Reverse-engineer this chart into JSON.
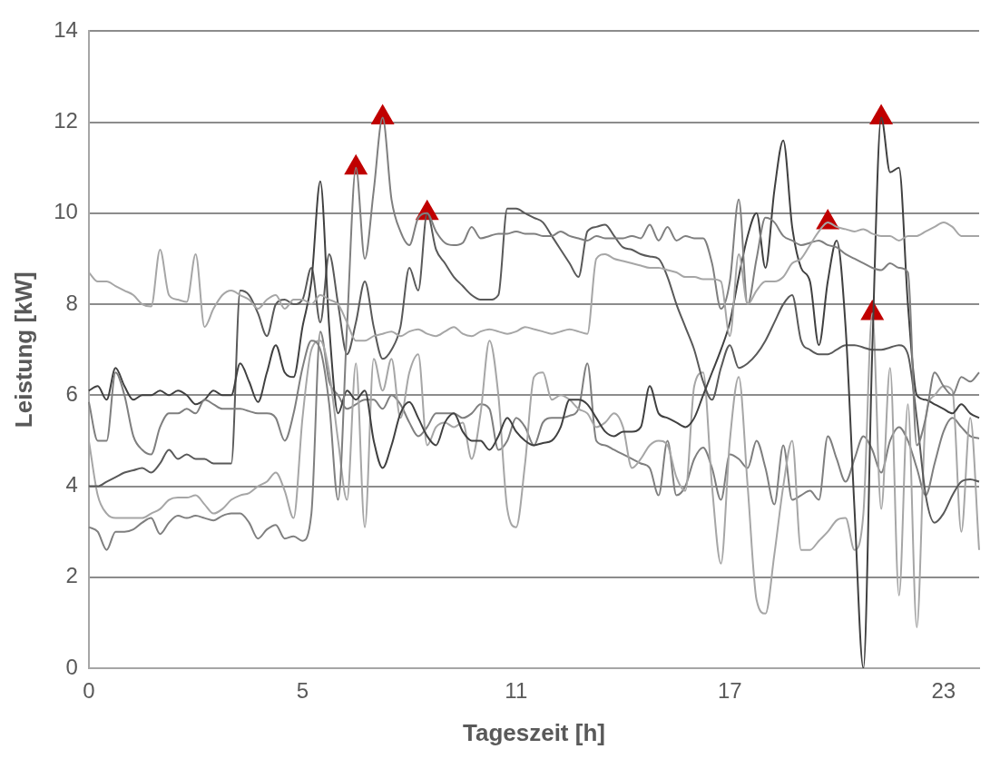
{
  "chart_data": {
    "type": "line",
    "xlabel": "Tageszeit [h]",
    "ylabel": "Leistung [kW]",
    "categories": [
      "0",
      null,
      null,
      null,
      null,
      null,
      null,
      null,
      null,
      null,
      null,
      null,
      null,
      null,
      null,
      null,
      null,
      null,
      null,
      null,
      null,
      null,
      null,
      null,
      "5",
      null,
      null,
      null,
      null,
      null,
      null,
      null,
      null,
      null,
      null,
      null,
      null,
      null,
      null,
      null,
      null,
      null,
      null,
      null,
      null,
      null,
      null,
      null,
      "11",
      null,
      null,
      null,
      null,
      null,
      null,
      null,
      null,
      null,
      null,
      null,
      null,
      null,
      null,
      null,
      null,
      null,
      null,
      null,
      null,
      null,
      null,
      null,
      "17",
      null,
      null,
      null,
      null,
      null,
      null,
      null,
      null,
      null,
      null,
      null,
      null,
      null,
      null,
      null,
      null,
      null,
      null,
      null,
      null,
      null,
      null,
      null,
      "23",
      null,
      null,
      null,
      null
    ],
    "ylim": [
      0,
      14
    ],
    "yticks": [
      0,
      2,
      4,
      6,
      8,
      10,
      12,
      14
    ],
    "grid": "y",
    "legend": false,
    "series": [
      {
        "color": "#a6a6a6",
        "values": [
          8.7,
          8.5,
          8.5,
          8.4,
          8.3,
          8.2,
          8.0,
          7.95,
          9.2,
          8.2,
          8.1,
          8.05,
          9.1,
          7.5,
          7.9,
          8.2,
          8.3,
          8.2,
          8.1,
          7.9,
          8.1,
          8.2,
          7.9,
          8.1,
          8.1,
          8.0,
          8.2,
          8.1,
          8.0,
          7.6,
          7.2,
          7.2,
          7.3,
          7.35,
          7.4,
          7.3,
          7.4,
          7.45,
          7.35,
          7.3,
          7.4,
          7.5,
          7.35,
          7.3,
          7.4,
          7.45,
          7.4,
          7.35,
          7.4,
          7.5,
          7.45,
          7.4,
          7.35,
          7.4,
          7.45,
          7.4,
          7.35,
          9.0,
          9.1,
          9.0,
          8.95,
          8.9,
          8.85,
          8.8,
          8.8,
          8.75,
          8.7,
          8.6,
          8.6,
          8.55,
          8.55,
          8.5,
          7.3,
          9.1,
          8.0,
          8.3,
          8.5,
          8.5,
          8.6,
          8.9,
          9.0,
          9.3,
          9.6,
          9.8,
          9.7,
          9.65,
          9.6,
          9.65,
          9.55,
          9.5,
          9.5,
          9.4,
          9.5,
          9.5,
          9.6,
          9.7,
          9.8,
          9.7,
          9.5,
          9.5,
          9.5
        ]
      },
      {
        "color": "#7f7f7f",
        "values": [
          5.85,
          5.0,
          5.0,
          6.5,
          6.0,
          5.1,
          4.8,
          4.7,
          5.3,
          5.6,
          5.6,
          5.7,
          5.6,
          5.9,
          5.8,
          5.7,
          5.7,
          5.7,
          5.65,
          5.6,
          5.6,
          5.5,
          5.0,
          5.6,
          6.6,
          7.2,
          7.0,
          5.8,
          3.7,
          7.5,
          11.0,
          9.0,
          10.5,
          12.1,
          10.3,
          9.6,
          9.3,
          9.9,
          10.0,
          9.6,
          9.35,
          9.3,
          9.35,
          9.7,
          9.45,
          9.5,
          9.55,
          9.55,
          9.6,
          9.55,
          9.55,
          9.5,
          9.5,
          9.6,
          9.5,
          9.45,
          9.4,
          9.5,
          9.45,
          9.45,
          9.45,
          9.5,
          9.45,
          9.75,
          9.4,
          9.7,
          9.4,
          9.5,
          9.45,
          9.45,
          8.9,
          7.9,
          8.5,
          10.3,
          8.0,
          9.0,
          9.9,
          9.8,
          9.5,
          9.4,
          9.3,
          9.35,
          9.4,
          9.3,
          9.25,
          9.1,
          9.0,
          8.9,
          8.8,
          8.75,
          8.9,
          8.8,
          8.7,
          4.9,
          5.5,
          6.5,
          6.2,
          6.0,
          6.4,
          6.3,
          6.5
        ]
      },
      {
        "color": "#404040",
        "values": [
          6.1,
          6.2,
          5.9,
          6.6,
          6.2,
          5.9,
          6.0,
          6.0,
          6.1,
          6.0,
          6.1,
          6.0,
          5.8,
          5.9,
          6.1,
          6.0,
          6.0,
          6.7,
          6.3,
          5.85,
          6.5,
          7.1,
          6.5,
          6.4,
          7.5,
          8.5,
          10.7,
          7.5,
          5.6,
          6.1,
          5.9,
          6.1,
          5.0,
          4.4,
          4.9,
          5.6,
          5.85,
          5.5,
          5.1,
          4.9,
          5.4,
          5.6,
          5.2,
          5.0,
          5.0,
          4.8,
          5.1,
          5.5,
          5.2,
          5.0,
          4.9,
          4.95,
          5.0,
          5.3,
          5.9,
          5.9,
          5.8,
          5.5,
          5.2,
          5.1,
          5.2,
          5.2,
          5.3,
          6.2,
          5.6,
          5.5,
          5.4,
          5.3,
          5.5,
          6.0,
          6.5,
          7.0,
          7.6,
          8.6,
          9.5,
          10.0,
          8.8,
          10.5,
          11.6,
          9.7,
          8.8,
          8.5,
          7.1,
          8.5,
          9.4,
          7.5,
          3.5,
          0,
          7.0,
          12.1,
          10.9,
          11.0,
          8.0,
          6.0,
          5.9,
          5.8,
          5.7,
          5.6,
          5.8,
          5.6,
          5.5
        ]
      },
      {
        "color": "#595959",
        "values": [
          4.0,
          4.0,
          4.1,
          4.2,
          4.3,
          4.35,
          4.4,
          4.3,
          4.5,
          4.8,
          4.6,
          4.7,
          4.6,
          4.6,
          4.5,
          4.5,
          4.5,
          8.3,
          8.2,
          7.8,
          7.3,
          8.0,
          8.1,
          8.0,
          8.1,
          8.8,
          7.6,
          9.1,
          8.0,
          6.9,
          7.6,
          8.5,
          7.5,
          6.8,
          7.0,
          7.5,
          8.8,
          8.3,
          10.0,
          9.2,
          8.9,
          8.6,
          8.4,
          8.2,
          8.1,
          8.1,
          8.2,
          10.1,
          10.1,
          10.0,
          9.9,
          9.8,
          9.5,
          9.2,
          8.9,
          8.6,
          9.6,
          9.7,
          9.75,
          9.5,
          9.25,
          9.2,
          9.1,
          9.05,
          9.0,
          8.6,
          8.0,
          7.5,
          7.0,
          6.3,
          5.9,
          6.6,
          7.1,
          6.6,
          6.7,
          6.9,
          7.2,
          7.6,
          8.0,
          8.2,
          7.2,
          7.0,
          6.9,
          6.9,
          7.0,
          7.1,
          7.1,
          7.05,
          7.0,
          7.0,
          7.05,
          7.1,
          6.9,
          5.5,
          3.8,
          3.2,
          3.4,
          3.8,
          4.1,
          4.15,
          4.1
        ]
      },
      {
        "color": "#a6a6a6",
        "values": [
          5.0,
          3.8,
          3.4,
          3.3,
          3.3,
          3.3,
          3.3,
          3.4,
          3.5,
          3.7,
          3.75,
          3.75,
          3.8,
          3.6,
          3.4,
          3.5,
          3.7,
          3.8,
          3.85,
          4.0,
          4.1,
          4.3,
          3.9,
          3.3,
          5.5,
          7.0,
          7.2,
          6.5,
          5.0,
          3.7,
          6.7,
          3.1,
          6.8,
          6.1,
          6.8,
          5.5,
          6.5,
          6.9,
          4.9,
          5.3,
          5.4,
          5.3,
          5.4,
          4.6,
          5.6,
          7.2,
          6.0,
          3.5,
          3.1,
          4.5,
          6.4,
          6.5,
          5.9,
          6.0,
          5.9,
          5.7,
          5.6,
          5.3,
          5.4,
          5.6,
          5.3,
          4.4,
          4.6,
          4.9,
          5.0,
          4.9,
          4.2,
          3.9,
          6.2,
          6.5,
          4.0,
          2.3,
          5.0,
          6.4,
          4.0,
          1.5,
          1.2,
          2.5,
          4.0,
          5.0,
          2.6,
          2.6,
          2.8,
          3.0,
          3.25,
          3.3,
          2.6,
          3.4,
          7.8,
          3.5,
          6.6,
          1.6,
          5.8,
          0.9,
          5.5,
          6.0,
          6.2,
          6.1,
          3.0,
          5.5,
          2.6
        ]
      },
      {
        "color": "#7f7f7f",
        "values": [
          3.1,
          3.0,
          2.6,
          3.0,
          3.0,
          3.05,
          3.2,
          3.3,
          2.95,
          3.2,
          3.35,
          3.3,
          3.35,
          3.3,
          3.25,
          3.35,
          3.4,
          3.4,
          3.2,
          2.85,
          3.05,
          3.15,
          2.85,
          2.9,
          2.8,
          3.4,
          7.4,
          6.3,
          6.0,
          5.7,
          5.8,
          5.9,
          5.9,
          5.7,
          6.0,
          5.8,
          5.4,
          5.1,
          5.3,
          5.6,
          5.6,
          5.6,
          5.5,
          5.6,
          5.8,
          5.7,
          4.8,
          5.0,
          5.5,
          5.3,
          4.9,
          5.4,
          5.5,
          5.5,
          5.55,
          5.7,
          6.7,
          5.0,
          4.9,
          4.8,
          4.7,
          4.6,
          4.5,
          4.4,
          3.8,
          5.0,
          3.8,
          4.0,
          4.6,
          4.85,
          4.4,
          3.7,
          4.7,
          4.6,
          4.4,
          5.0,
          4.4,
          3.6,
          4.9,
          3.7,
          3.8,
          3.9,
          3.7,
          5.1,
          4.6,
          4.1,
          4.6,
          5.1,
          4.8,
          4.3,
          5.0,
          5.3,
          5.0,
          4.4,
          3.8,
          4.5,
          5.2,
          5.5,
          5.3,
          5.1,
          5.05
        ]
      },
      {
        "type": "scatter",
        "marker": "triangle",
        "color": "#c00000",
        "values": [
          null,
          null,
          null,
          null,
          null,
          null,
          null,
          null,
          null,
          null,
          null,
          null,
          null,
          null,
          null,
          null,
          null,
          null,
          null,
          null,
          null,
          null,
          null,
          null,
          null,
          null,
          null,
          null,
          null,
          null,
          11.0,
          null,
          null,
          12.1,
          null,
          null,
          null,
          null,
          10.0,
          null,
          null,
          null,
          null,
          null,
          null,
          null,
          null,
          null,
          null,
          null,
          null,
          null,
          null,
          null,
          null,
          null,
          null,
          null,
          null,
          null,
          null,
          null,
          null,
          null,
          null,
          null,
          null,
          null,
          null,
          null,
          null,
          null,
          null,
          null,
          null,
          null,
          null,
          null,
          null,
          null,
          null,
          null,
          null,
          9.8,
          null,
          null,
          null,
          null,
          7.8,
          12.1,
          null,
          null,
          null,
          null,
          null,
          null,
          null,
          null,
          null,
          null,
          null
        ]
      }
    ]
  }
}
